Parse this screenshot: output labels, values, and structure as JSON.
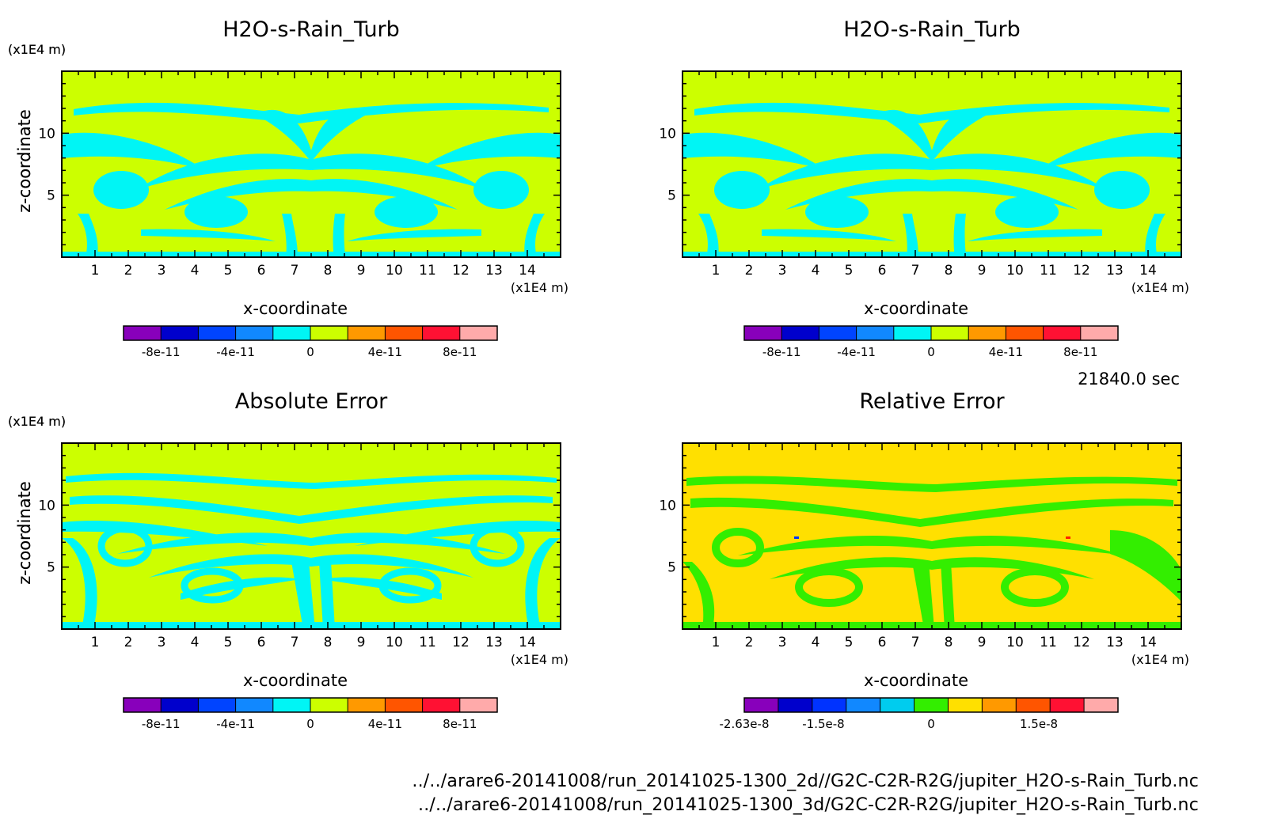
{
  "time_label": "21840.0 sec",
  "footer": {
    "line1": "../../arare6-20141008/run_20141025-1300_2d//G2C-C2R-R2G/jupiter_H2O-s-Rain_Turb.nc",
    "line2": "../../arare6-20141008/run_20141025-1300_3d/G2C-C2R-R2G/jupiter_H2O-s-Rain_Turb.nc"
  },
  "colors": {
    "cyan": "#00f5f5",
    "yellowgreen": "#ccff00",
    "yellow": "#ffe000",
    "green": "#33ee00",
    "blue_mark": "#0033ff",
    "red_mark": "#ff2200"
  },
  "chart_data": [
    {
      "type": "heatmap",
      "title": "H2O-s-Rain_Turb",
      "xlabel": "x-coordinate",
      "ylabel": "z-coordinate",
      "xunit": "(x1E4 m)",
      "yunit": "(x1E4 m)",
      "xlim": [
        0,
        15
      ],
      "ylim": [
        0,
        15
      ],
      "xticks": [
        "1",
        "2",
        "3",
        "4",
        "5",
        "6",
        "7",
        "8",
        "9",
        "10",
        "11",
        "12",
        "13",
        "14"
      ],
      "yticks": [
        "5",
        "10"
      ],
      "pattern": "A",
      "colorbar": {
        "colors": [
          "#8800bb",
          "#0000cc",
          "#0044ff",
          "#1188ff",
          "#00f5f5",
          "#ccff00",
          "#ff9900",
          "#ff5500",
          "#ff1133",
          "#ffaaaa"
        ],
        "labels": [
          "-8e-11",
          "-4e-11",
          "0",
          "4e-11",
          "8e-11"
        ],
        "label_positions": [
          1,
          3,
          5,
          7,
          9
        ]
      }
    },
    {
      "type": "heatmap",
      "title": "H2O-s-Rain_Turb",
      "xlabel": "x-coordinate",
      "ylabel": "z-coordinate",
      "xunit": "(x1E4 m)",
      "yunit": "(x1E4 m)",
      "xlim": [
        0,
        15
      ],
      "ylim": [
        0,
        15
      ],
      "xticks": [
        "1",
        "2",
        "3",
        "4",
        "5",
        "6",
        "7",
        "8",
        "9",
        "10",
        "11",
        "12",
        "13",
        "14"
      ],
      "yticks": [
        "5",
        "10"
      ],
      "pattern": "A",
      "colorbar": {
        "colors": [
          "#8800bb",
          "#0000cc",
          "#0044ff",
          "#1188ff",
          "#00f5f5",
          "#ccff00",
          "#ff9900",
          "#ff5500",
          "#ff1133",
          "#ffaaaa"
        ],
        "labels": [
          "-8e-11",
          "-4e-11",
          "0",
          "4e-11",
          "8e-11"
        ],
        "label_positions": [
          1,
          3,
          5,
          7,
          9
        ]
      }
    },
    {
      "type": "heatmap",
      "title": "Absolute Error",
      "xlabel": "x-coordinate",
      "ylabel": "z-coordinate",
      "xunit": "(x1E4 m)",
      "yunit": "(x1E4 m)",
      "xlim": [
        0,
        15
      ],
      "ylim": [
        0,
        15
      ],
      "xticks": [
        "1",
        "2",
        "3",
        "4",
        "5",
        "6",
        "7",
        "8",
        "9",
        "10",
        "11",
        "12",
        "13",
        "14"
      ],
      "yticks": [
        "5",
        "10"
      ],
      "pattern": "B",
      "colorbar": {
        "colors": [
          "#8800bb",
          "#0000cc",
          "#0044ff",
          "#1188ff",
          "#00f5f5",
          "#ccff00",
          "#ff9900",
          "#ff5500",
          "#ff1133",
          "#ffaaaa"
        ],
        "labels": [
          "-8e-11",
          "-4e-11",
          "0",
          "4e-11",
          "8e-11"
        ],
        "label_positions": [
          1,
          3,
          5,
          7,
          9
        ]
      }
    },
    {
      "type": "heatmap",
      "title": "Relative Error",
      "xlabel": "x-coordinate",
      "ylabel": "z-coordinate",
      "xunit": "(x1E4 m)",
      "yunit": "(x1E4 m)",
      "xlim": [
        0,
        15
      ],
      "ylim": [
        0,
        15
      ],
      "xticks": [
        "1",
        "2",
        "3",
        "4",
        "5",
        "6",
        "7",
        "8",
        "9",
        "10",
        "11",
        "12",
        "13",
        "14"
      ],
      "yticks": [
        "5",
        "10"
      ],
      "pattern": "C",
      "colorbar": {
        "colors": [
          "#8800bb",
          "#0000cc",
          "#0033ff",
          "#1188ff",
          "#00ccee",
          "#33ee00",
          "#ffe000",
          "#ff9900",
          "#ff5500",
          "#ff1133",
          "#ffaaaa"
        ],
        "labels": [
          "-2.63e-8",
          "-1.5e-8",
          "0",
          "1.5e-8"
        ],
        "label_positions": [
          0,
          2.33,
          5.5,
          8.67
        ]
      }
    }
  ]
}
